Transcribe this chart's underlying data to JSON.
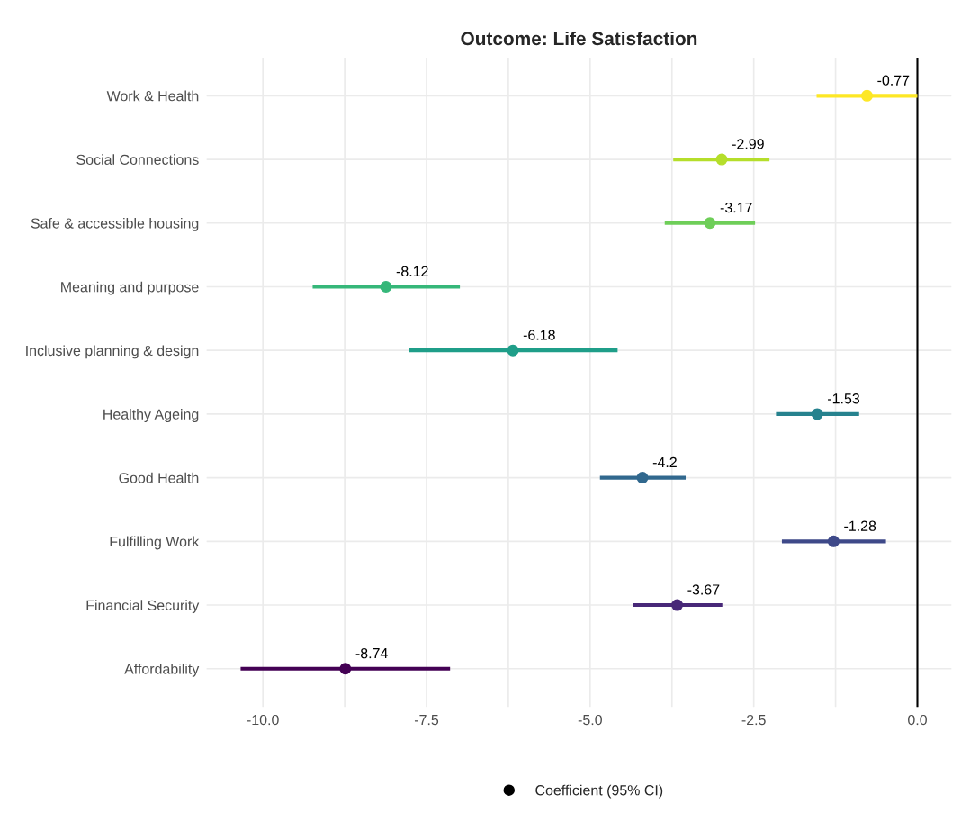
{
  "chart_data": {
    "type": "scatter",
    "orientation": "horizontal",
    "title": "Outcome: Life Satisfaction",
    "categories": [
      "Work & Health",
      "Social Connections",
      "Safe & accessible housing",
      "Meaning and purpose",
      "Inclusive planning & design",
      "Healthy Ageing",
      "Good Health",
      "Fulfilling Work",
      "Financial Security",
      "Affordability"
    ],
    "series": [
      {
        "name": "Coefficient (95% CI)",
        "colors": [
          "#fde725",
          "#b5de2b",
          "#6ece58",
          "#35b779",
          "#1f9e89",
          "#26828e",
          "#31688e",
          "#3e4989",
          "#482878",
          "#440154"
        ],
        "values": [
          -0.77,
          -2.99,
          -3.17,
          -8.12,
          -6.18,
          -1.53,
          -4.2,
          -1.28,
          -3.67,
          -8.74
        ],
        "errors": [
          [
            -1.54,
            0.0
          ],
          [
            -3.73,
            -2.26
          ],
          [
            -3.86,
            -2.48
          ],
          [
            -9.24,
            -6.99
          ],
          [
            -7.77,
            -4.58
          ],
          [
            -2.16,
            -0.89
          ],
          [
            -4.85,
            -3.54
          ],
          [
            -2.07,
            -0.48
          ],
          [
            -4.35,
            -2.98
          ],
          [
            -10.34,
            -7.14
          ]
        ]
      }
    ],
    "data_labels": true,
    "xlim": [
      -10.86,
      0.52
    ],
    "xticks": [
      {
        "value": -10,
        "label": "-10.0"
      },
      {
        "value": -8.75,
        "label": null
      },
      -7.5,
      {
        "value": -6.25,
        "label": null
      },
      {
        "value": -5,
        "label": "-5.0"
      },
      {
        "value": -3.75,
        "label": null
      },
      -2.5,
      {
        "value": -1.25,
        "label": null
      },
      {
        "value": 0,
        "label": "0.0"
      }
    ],
    "ref_lines": [
      {
        "axis": "x",
        "value": 0,
        "color": "#000000"
      }
    ],
    "grid": true,
    "legend": "bottom",
    "marker": "circle"
  }
}
